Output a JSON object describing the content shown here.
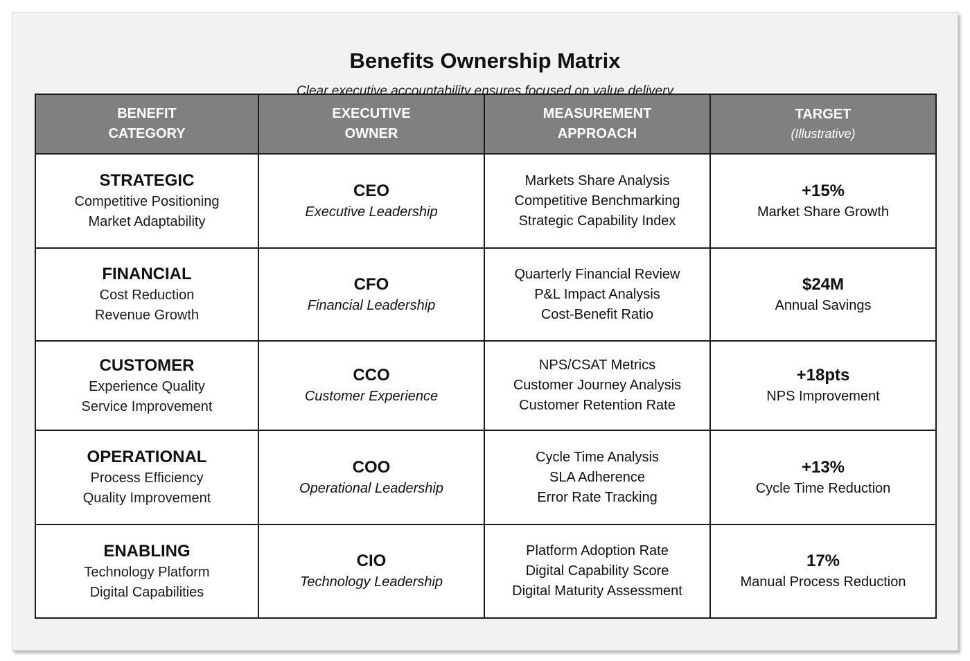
{
  "title": "Benefits Ownership Matrix",
  "subtitle": "Clear executive accountability ensures focused on value delivery",
  "headers": [
    {
      "line1": "BENEFIT",
      "line2": "CATEGORY",
      "sub": ""
    },
    {
      "line1": "EXECUTIVE",
      "line2": "OWNER",
      "sub": ""
    },
    {
      "line1": "MEASUREMENT",
      "line2": "APPROACH",
      "sub": ""
    },
    {
      "line1": "TARGET",
      "line2": "",
      "sub": "(Illustrative)"
    }
  ],
  "rows": [
    {
      "category": {
        "name": "STRATEGIC",
        "lines": [
          "Competitive Positioning",
          "Market Adaptability"
        ]
      },
      "owner": {
        "code": "CEO",
        "role": "Executive Leadership"
      },
      "measurement": [
        "Markets Share Analysis",
        "Competitive Benchmarking",
        "Strategic Capability Index"
      ],
      "target": {
        "value": "+15%",
        "desc": "Market Share Growth"
      }
    },
    {
      "category": {
        "name": "FINANCIAL",
        "lines": [
          "Cost Reduction",
          "Revenue Growth"
        ]
      },
      "owner": {
        "code": "CFO",
        "role": "Financial Leadership"
      },
      "measurement": [
        "Quarterly Financial Review",
        "P&L Impact Analysis",
        "Cost-Benefit Ratio"
      ],
      "target": {
        "value": "$24M",
        "desc": "Annual Savings"
      }
    },
    {
      "category": {
        "name": "CUSTOMER",
        "lines": [
          "Experience Quality",
          "Service Improvement"
        ]
      },
      "owner": {
        "code": "CCO",
        "role": "Customer Experience"
      },
      "measurement": [
        "NPS/CSAT Metrics",
        "Customer Journey Analysis",
        "Customer Retention Rate"
      ],
      "target": {
        "value": "+18pts",
        "desc": "NPS Improvement"
      }
    },
    {
      "category": {
        "name": "OPERATIONAL",
        "lines": [
          "Process Efficiency",
          "Quality Improvement"
        ]
      },
      "owner": {
        "code": "COO",
        "role": "Operational Leadership"
      },
      "measurement": [
        "Cycle Time Analysis",
        "SLA Adherence",
        "Error Rate Tracking"
      ],
      "target": {
        "value": "+13%",
        "desc": "Cycle Time Reduction"
      }
    },
    {
      "category": {
        "name": "ENABLING",
        "lines": [
          "Technology Platform",
          "Digital Capabilities"
        ]
      },
      "owner": {
        "code": "CIO",
        "role": "Technology Leadership"
      },
      "measurement": [
        "Platform Adoption Rate",
        "Digital Capability Score",
        "Digital Maturity Assessment"
      ],
      "target": {
        "value": "17%",
        "desc": "Manual Process Reduction"
      }
    }
  ]
}
